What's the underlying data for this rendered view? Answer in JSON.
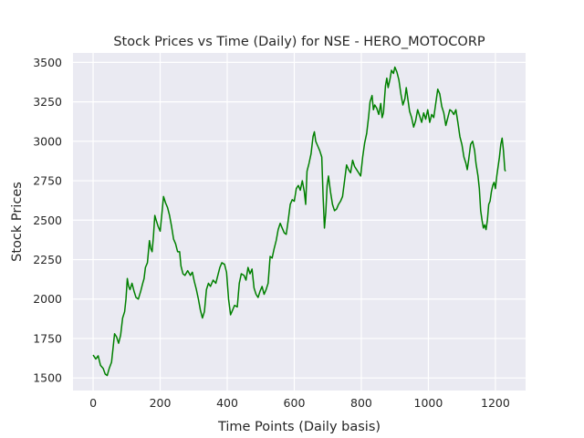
{
  "chart_data": {
    "type": "line",
    "title": "Stock Prices vs Time (Daily) for NSE - HERO_MOTOCORP",
    "xlabel": "Time Points (Daily basis)",
    "ylabel": "Stock Prices",
    "xlim": [
      -60,
      1290
    ],
    "ylim": [
      1420,
      3560
    ],
    "xticks": [
      0,
      200,
      400,
      600,
      800,
      1000,
      1200
    ],
    "yticks": [
      1500,
      1750,
      2000,
      2250,
      2500,
      2750,
      3000,
      3250,
      3500
    ],
    "grid": true,
    "background": "#eaeaf2",
    "series": [
      {
        "color": "#008000",
        "points": [
          [
            0,
            1645
          ],
          [
            8,
            1620
          ],
          [
            15,
            1640
          ],
          [
            22,
            1580
          ],
          [
            30,
            1560
          ],
          [
            36,
            1525
          ],
          [
            42,
            1515
          ],
          [
            48,
            1560
          ],
          [
            55,
            1600
          ],
          [
            60,
            1700
          ],
          [
            64,
            1780
          ],
          [
            70,
            1760
          ],
          [
            76,
            1720
          ],
          [
            82,
            1770
          ],
          [
            88,
            1880
          ],
          [
            94,
            1920
          ],
          [
            98,
            2000
          ],
          [
            102,
            2130
          ],
          [
            106,
            2080
          ],
          [
            110,
            2060
          ],
          [
            116,
            2100
          ],
          [
            122,
            2050
          ],
          [
            128,
            2010
          ],
          [
            135,
            2000
          ],
          [
            142,
            2050
          ],
          [
            148,
            2100
          ],
          [
            152,
            2130
          ],
          [
            156,
            2200
          ],
          [
            162,
            2230
          ],
          [
            168,
            2370
          ],
          [
            172,
            2320
          ],
          [
            176,
            2300
          ],
          [
            180,
            2400
          ],
          [
            184,
            2530
          ],
          [
            188,
            2500
          ],
          [
            194,
            2460
          ],
          [
            200,
            2430
          ],
          [
            206,
            2560
          ],
          [
            210,
            2650
          ],
          [
            216,
            2610
          ],
          [
            222,
            2580
          ],
          [
            228,
            2530
          ],
          [
            234,
            2460
          ],
          [
            240,
            2380
          ],
          [
            246,
            2350
          ],
          [
            252,
            2300
          ],
          [
            258,
            2300
          ],
          [
            262,
            2210
          ],
          [
            268,
            2160
          ],
          [
            274,
            2150
          ],
          [
            282,
            2180
          ],
          [
            290,
            2150
          ],
          [
            296,
            2170
          ],
          [
            302,
            2110
          ],
          [
            308,
            2060
          ],
          [
            314,
            2000
          ],
          [
            320,
            1930
          ],
          [
            326,
            1880
          ],
          [
            332,
            1920
          ],
          [
            338,
            2060
          ],
          [
            344,
            2100
          ],
          [
            350,
            2080
          ],
          [
            358,
            2120
          ],
          [
            366,
            2100
          ],
          [
            372,
            2150
          ],
          [
            378,
            2200
          ],
          [
            384,
            2230
          ],
          [
            392,
            2220
          ],
          [
            398,
            2170
          ],
          [
            404,
            2000
          ],
          [
            410,
            1900
          ],
          [
            416,
            1930
          ],
          [
            422,
            1960
          ],
          [
            430,
            1950
          ],
          [
            436,
            2100
          ],
          [
            442,
            2160
          ],
          [
            450,
            2150
          ],
          [
            456,
            2120
          ],
          [
            462,
            2200
          ],
          [
            468,
            2160
          ],
          [
            474,
            2190
          ],
          [
            480,
            2070
          ],
          [
            486,
            2030
          ],
          [
            492,
            2010
          ],
          [
            498,
            2050
          ],
          [
            504,
            2080
          ],
          [
            510,
            2030
          ],
          [
            516,
            2060
          ],
          [
            522,
            2100
          ],
          [
            528,
            2270
          ],
          [
            534,
            2260
          ],
          [
            540,
            2320
          ],
          [
            546,
            2370
          ],
          [
            552,
            2440
          ],
          [
            558,
            2480
          ],
          [
            564,
            2450
          ],
          [
            570,
            2420
          ],
          [
            576,
            2410
          ],
          [
            582,
            2500
          ],
          [
            588,
            2600
          ],
          [
            594,
            2630
          ],
          [
            600,
            2620
          ],
          [
            606,
            2700
          ],
          [
            612,
            2720
          ],
          [
            618,
            2690
          ],
          [
            624,
            2750
          ],
          [
            630,
            2680
          ],
          [
            634,
            2600
          ],
          [
            638,
            2810
          ],
          [
            644,
            2860
          ],
          [
            650,
            2920
          ],
          [
            656,
            3030
          ],
          [
            660,
            3060
          ],
          [
            664,
            3000
          ],
          [
            670,
            2970
          ],
          [
            676,
            2940
          ],
          [
            682,
            2900
          ],
          [
            686,
            2650
          ],
          [
            690,
            2450
          ],
          [
            694,
            2550
          ],
          [
            698,
            2720
          ],
          [
            702,
            2780
          ],
          [
            708,
            2680
          ],
          [
            714,
            2600
          ],
          [
            720,
            2560
          ],
          [
            726,
            2570
          ],
          [
            732,
            2600
          ],
          [
            738,
            2620
          ],
          [
            744,
            2650
          ],
          [
            750,
            2750
          ],
          [
            756,
            2850
          ],
          [
            762,
            2820
          ],
          [
            768,
            2800
          ],
          [
            774,
            2880
          ],
          [
            780,
            2840
          ],
          [
            786,
            2820
          ],
          [
            792,
            2800
          ],
          [
            798,
            2780
          ],
          [
            804,
            2900
          ],
          [
            810,
            2990
          ],
          [
            816,
            3050
          ],
          [
            822,
            3160
          ],
          [
            826,
            3250
          ],
          [
            832,
            3290
          ],
          [
            836,
            3200
          ],
          [
            840,
            3230
          ],
          [
            846,
            3210
          ],
          [
            852,
            3170
          ],
          [
            858,
            3240
          ],
          [
            862,
            3150
          ],
          [
            866,
            3180
          ],
          [
            872,
            3350
          ],
          [
            876,
            3400
          ],
          [
            880,
            3340
          ],
          [
            886,
            3400
          ],
          [
            890,
            3450
          ],
          [
            896,
            3430
          ],
          [
            900,
            3470
          ],
          [
            906,
            3440
          ],
          [
            912,
            3390
          ],
          [
            918,
            3300
          ],
          [
            924,
            3230
          ],
          [
            930,
            3270
          ],
          [
            934,
            3340
          ],
          [
            938,
            3280
          ],
          [
            944,
            3190
          ],
          [
            950,
            3150
          ],
          [
            956,
            3090
          ],
          [
            962,
            3130
          ],
          [
            968,
            3200
          ],
          [
            974,
            3160
          ],
          [
            980,
            3120
          ],
          [
            986,
            3180
          ],
          [
            992,
            3140
          ],
          [
            998,
            3200
          ],
          [
            1004,
            3120
          ],
          [
            1010,
            3170
          ],
          [
            1016,
            3150
          ],
          [
            1022,
            3240
          ],
          [
            1028,
            3330
          ],
          [
            1034,
            3300
          ],
          [
            1040,
            3220
          ],
          [
            1046,
            3180
          ],
          [
            1052,
            3100
          ],
          [
            1058,
            3150
          ],
          [
            1064,
            3200
          ],
          [
            1070,
            3190
          ],
          [
            1076,
            3170
          ],
          [
            1082,
            3200
          ],
          [
            1088,
            3120
          ],
          [
            1094,
            3030
          ],
          [
            1100,
            2980
          ],
          [
            1106,
            2900
          ],
          [
            1112,
            2860
          ],
          [
            1116,
            2820
          ],
          [
            1120,
            2880
          ],
          [
            1126,
            2980
          ],
          [
            1132,
            3000
          ],
          [
            1138,
            2940
          ],
          [
            1142,
            2860
          ],
          [
            1148,
            2780
          ],
          [
            1152,
            2700
          ],
          [
            1156,
            2560
          ],
          [
            1160,
            2500
          ],
          [
            1164,
            2450
          ],
          [
            1168,
            2470
          ],
          [
            1172,
            2440
          ],
          [
            1176,
            2500
          ],
          [
            1180,
            2600
          ],
          [
            1184,
            2620
          ],
          [
            1188,
            2680
          ],
          [
            1192,
            2720
          ],
          [
            1196,
            2740
          ],
          [
            1200,
            2700
          ],
          [
            1204,
            2780
          ],
          [
            1208,
            2840
          ],
          [
            1212,
            2900
          ],
          [
            1216,
            2980
          ],
          [
            1220,
            3020
          ],
          [
            1224,
            2940
          ],
          [
            1228,
            2820
          ],
          [
            1230,
            2810
          ]
        ]
      }
    ]
  }
}
